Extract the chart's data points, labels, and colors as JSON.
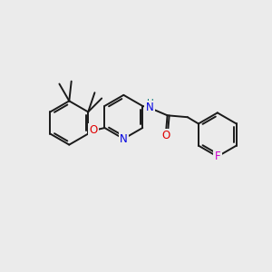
{
  "bg_color": "#ebebeb",
  "bond_color": "#1a1a1a",
  "bond_width": 1.4,
  "atom_colors": {
    "N": "#0000e0",
    "O": "#e00000",
    "F": "#cc00cc",
    "NH": "#007777",
    "C": "#1a1a1a"
  },
  "font_size": 8.5,
  "fig_size": [
    3.0,
    3.0
  ],
  "dpi": 100,
  "xlim": [
    0,
    10
  ],
  "ylim": [
    0,
    10
  ]
}
